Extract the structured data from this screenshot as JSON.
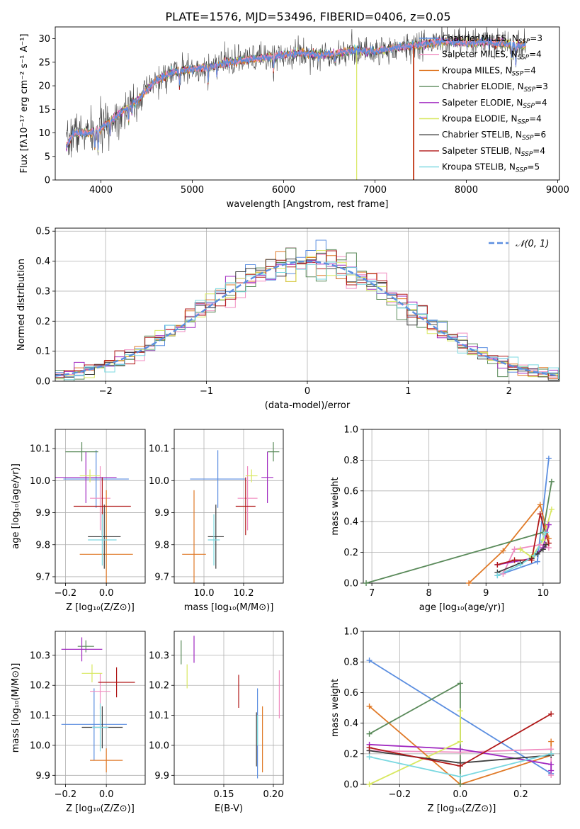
{
  "figure_title": "PLATE=1576, MJD=53496, FIBERID=0406, z=0.05",
  "colors": {
    "chabrier_miles": "#5b8ee0",
    "salpeter_miles": "#f08cc0",
    "kroupa_miles": "#e07a28",
    "chabrier_elodie": "#5a8a5a",
    "salpeter_elodie": "#a028c0",
    "kroupa_elodie": "#d8e860",
    "chabrier_stelib": "#404040",
    "salpeter_stelib": "#b01818",
    "kroupa_stelib": "#7ad8e0",
    "gauss": "#5b8ee0"
  },
  "legend_spectrum": [
    {
      "pre": "Chabrier MILES, N",
      "sub": "SSP",
      "post": "=3",
      "color": "#5b8ee0"
    },
    {
      "pre": "Salpeter MILES, N",
      "sub": "SSP",
      "post": "=4",
      "color": "#f08cc0"
    },
    {
      "pre": "Kroupa MILES, N",
      "sub": "SSP",
      "post": "=4",
      "color": "#e07a28"
    },
    {
      "pre": "Chabrier ELODIE, N",
      "sub": "SSP",
      "post": "=3",
      "color": "#5a8a5a"
    },
    {
      "pre": "Salpeter ELODIE, N",
      "sub": "SSP",
      "post": "=4",
      "color": "#a028c0"
    },
    {
      "pre": "Kroupa ELODIE, N",
      "sub": "SSP",
      "post": "=4",
      "color": "#d8e860"
    },
    {
      "pre": "Chabrier STELIB, N",
      "sub": "SSP",
      "post": "=6",
      "color": "#404040"
    },
    {
      "pre": "Salpeter STELIB, N",
      "sub": "SSP",
      "post": "=4",
      "color": "#b01818"
    },
    {
      "pre": "Kroupa STELIB, N",
      "sub": "SSP",
      "post": "=5",
      "color": "#7ad8e0"
    }
  ],
  "legend_gauss": "𝒩(0, 1)",
  "chart_data": [
    {
      "id": "spectrum",
      "type": "line",
      "xlabel": "wavelength [Angstrom, rest frame]",
      "ylabel": "Flux [fλ10⁻¹⁷ erg cm⁻² s⁻¹ A⁻¹]",
      "xlim": [
        3500,
        9020
      ],
      "ylim": [
        0,
        32.5
      ],
      "xticks": [
        4000,
        5000,
        6000,
        7000,
        8000,
        9000
      ],
      "yticks": [
        0,
        5,
        10,
        15,
        20,
        25,
        30
      ],
      "continuum": [
        [
          3620,
          7
        ],
        [
          3700,
          10
        ],
        [
          3900,
          10
        ],
        [
          4000,
          11
        ],
        [
          4200,
          14
        ],
        [
          4400,
          17
        ],
        [
          4600,
          21
        ],
        [
          4800,
          23
        ],
        [
          5000,
          23.5
        ],
        [
          5200,
          24
        ],
        [
          5400,
          25
        ],
        [
          5600,
          25.5
        ],
        [
          5800,
          26
        ],
        [
          6000,
          26.5
        ],
        [
          6200,
          27
        ],
        [
          6400,
          26.5
        ],
        [
          6600,
          27
        ],
        [
          6800,
          27.5
        ],
        [
          7000,
          27.2
        ],
        [
          7200,
          28
        ],
        [
          7400,
          28.5
        ],
        [
          7600,
          29
        ],
        [
          7800,
          29.5
        ],
        [
          8000,
          29
        ],
        [
          8200,
          29.3
        ],
        [
          8400,
          29
        ],
        [
          8600,
          28.5
        ]
      ],
      "absorptions": [
        [
          3934,
          4
        ],
        [
          3969,
          4
        ],
        [
          4102,
          3
        ],
        [
          4304,
          3
        ],
        [
          4340,
          2
        ],
        [
          4861,
          3
        ],
        [
          5175,
          3.5
        ],
        [
          5270,
          2
        ],
        [
          5890,
          3
        ],
        [
          6563,
          2
        ],
        [
          8498,
          3
        ],
        [
          8542,
          4
        ],
        [
          8662,
          4
        ]
      ],
      "model_drops": [
        {
          "x": 6800,
          "color": "#d8e860"
        },
        {
          "x": 7420,
          "color": "#e07a28"
        },
        {
          "x": 7425,
          "color": "#b01818"
        }
      ]
    },
    {
      "id": "residuals",
      "type": "histogram",
      "xlabel": "(data-model)/error",
      "ylabel": "Normed distribution",
      "xlim": [
        -2.5,
        2.5
      ],
      "ylim": [
        0,
        0.51
      ],
      "xticks": [
        -2,
        -1,
        0,
        1,
        2
      ],
      "yticks": [
        0.0,
        0.1,
        0.2,
        0.3,
        0.4,
        0.5
      ],
      "bin_width": 0.1,
      "gaussian": {
        "mean": 0,
        "sigma": 1
      }
    },
    {
      "id": "age_vs_Z",
      "type": "errorbar",
      "xlabel": "Z [log₁₀(Z/Z⊙)]",
      "ylabel": "age  [log₁₀(age/yr)]",
      "xlim": [
        -0.25,
        0.19
      ],
      "ylim": [
        9.68,
        10.16
      ],
      "xticks": [
        -0.2,
        0.0
      ],
      "yticks": [
        9.7,
        9.8,
        9.9,
        10.0,
        10.1
      ],
      "points": [
        {
          "model": "chabrier_miles",
          "x": -0.05,
          "xerr": 0.16,
          "y": 10.005,
          "yerr": 0.09
        },
        {
          "model": "salpeter_miles",
          "x": -0.03,
          "xerr": 0.05,
          "y": 9.945,
          "yerr": 0.1
        },
        {
          "model": "kroupa_miles",
          "x": 0.0,
          "xerr": 0.13,
          "y": 9.77,
          "yerr": 0.2
        },
        {
          "model": "chabrier_elodie",
          "x": -0.12,
          "xerr": 0.08,
          "y": 10.09,
          "yerr": 0.03
        },
        {
          "model": "salpeter_elodie",
          "x": -0.1,
          "xerr": 0.15,
          "y": 10.01,
          "yerr": 0.08
        },
        {
          "model": "kroupa_elodie",
          "x": -0.08,
          "xerr": 0.05,
          "y": 10.015,
          "yerr": 0.02
        },
        {
          "model": "chabrier_stelib",
          "x": -0.01,
          "xerr": 0.08,
          "y": 9.825,
          "yerr": 0.1
        },
        {
          "model": "salpeter_stelib",
          "x": -0.02,
          "xerr": 0.14,
          "y": 9.92,
          "yerr": 0.09
        },
        {
          "model": "kroupa_stelib",
          "x": -0.02,
          "xerr": 0.07,
          "y": 9.815,
          "yerr": 0.08
        }
      ]
    },
    {
      "id": "age_vs_mass",
      "type": "errorbar",
      "xlabel": "mass [log₁₀(M/M⊙)]",
      "ylabel": "",
      "xlim": [
        9.85,
        10.4
      ],
      "ylim": [
        9.68,
        10.16
      ],
      "xticks": [
        10.0,
        10.2
      ],
      "yticks": [
        9.7,
        9.8,
        9.9,
        10.0,
        10.1
      ],
      "points": [
        {
          "model": "chabrier_miles",
          "x": 10.07,
          "xerr": 0.14,
          "y": 10.005,
          "yerr": 0.09
        },
        {
          "model": "salpeter_miles",
          "x": 10.22,
          "xerr": 0.05,
          "y": 9.945,
          "yerr": 0.1
        },
        {
          "model": "kroupa_miles",
          "x": 9.95,
          "xerr": 0.06,
          "y": 9.77,
          "yerr": 0.2
        },
        {
          "model": "chabrier_elodie",
          "x": 10.35,
          "xerr": 0.03,
          "y": 10.09,
          "yerr": 0.03
        },
        {
          "model": "salpeter_elodie",
          "x": 10.32,
          "xerr": 0.03,
          "y": 10.01,
          "yerr": 0.08
        },
        {
          "model": "kroupa_elodie",
          "x": 10.24,
          "xerr": 0.03,
          "y": 10.015,
          "yerr": 0.02
        },
        {
          "model": "chabrier_stelib",
          "x": 10.06,
          "xerr": 0.04,
          "y": 9.825,
          "yerr": 0.1
        },
        {
          "model": "salpeter_stelib",
          "x": 10.21,
          "xerr": 0.05,
          "y": 9.92,
          "yerr": 0.09
        },
        {
          "model": "kroupa_stelib",
          "x": 10.05,
          "xerr": 0.03,
          "y": 9.815,
          "yerr": 0.08
        }
      ]
    },
    {
      "id": "weight_vs_age",
      "type": "line",
      "xlabel": "age  [log₁₀(age/yr)]",
      "ylabel": "mass weight",
      "xlim": [
        6.85,
        10.3
      ],
      "ylim": [
        0,
        1.0
      ],
      "xticks": [
        7,
        8,
        9,
        10
      ],
      "yticks": [
        0.0,
        0.2,
        0.4,
        0.6,
        0.8,
        1.0
      ],
      "series": [
        {
          "model": "chabrier_miles",
          "x": [
            9.2,
            9.9,
            10.1
          ],
          "y": [
            0.05,
            0.14,
            0.81
          ]
        },
        {
          "model": "salpeter_miles",
          "x": [
            9.3,
            9.5,
            9.95,
            10.1
          ],
          "y": [
            0.06,
            0.22,
            0.25,
            0.23
          ]
        },
        {
          "model": "kroupa_miles",
          "x": [
            8.7,
            9.3,
            9.95,
            10.1
          ],
          "y": [
            0.0,
            0.21,
            0.51,
            0.29
          ]
        },
        {
          "model": "chabrier_elodie",
          "x": [
            6.9,
            10.0,
            10.15
          ],
          "y": [
            0.0,
            0.33,
            0.66
          ]
        },
        {
          "model": "salpeter_elodie",
          "x": [
            9.2,
            9.8,
            10.0,
            10.1
          ],
          "y": [
            0.12,
            0.16,
            0.23,
            0.38
          ]
        },
        {
          "model": "kroupa_elodie",
          "x": [
            9.6,
            9.8,
            10.0,
            10.15
          ],
          "y": [
            0.22,
            0.17,
            0.28,
            0.48
          ]
        },
        {
          "model": "chabrier_stelib",
          "x": [
            9.2,
            9.6,
            9.8,
            9.9,
            10.0,
            10.05
          ],
          "y": [
            0.07,
            0.13,
            0.16,
            0.19,
            0.22,
            0.25
          ]
        },
        {
          "model": "salpeter_stelib",
          "x": [
            9.2,
            9.5,
            9.8,
            9.95,
            10.1
          ],
          "y": [
            0.12,
            0.15,
            0.15,
            0.45,
            0.26
          ]
        },
        {
          "model": "kroupa_stelib",
          "x": [
            9.2,
            9.6,
            9.85,
            10.05
          ],
          "y": [
            0.05,
            0.12,
            0.18,
            0.33
          ]
        }
      ]
    },
    {
      "id": "mass_vs_Z",
      "type": "errorbar",
      "xlabel": "Z [log₁₀(Z/Z⊙)]",
      "ylabel": "mass [log₁₀(M/M⊙)]",
      "xlim": [
        -0.25,
        0.19
      ],
      "ylim": [
        9.87,
        10.38
      ],
      "xticks": [
        -0.2,
        0.0
      ],
      "yticks": [
        9.9,
        10.0,
        10.1,
        10.2,
        10.3
      ],
      "points": [
        {
          "model": "chabrier_miles",
          "x": -0.06,
          "xerr": 0.16,
          "y": 10.07,
          "yerr": 0.12
        },
        {
          "model": "salpeter_miles",
          "x": -0.03,
          "xerr": 0.05,
          "y": 10.18,
          "yerr": 0.06
        },
        {
          "model": "kroupa_miles",
          "x": 0.0,
          "xerr": 0.08,
          "y": 9.95,
          "yerr": 0.04
        },
        {
          "model": "chabrier_elodie",
          "x": -0.1,
          "xerr": 0.04,
          "y": 10.33,
          "yerr": 0.02
        },
        {
          "model": "salpeter_elodie",
          "x": -0.12,
          "xerr": 0.1,
          "y": 10.32,
          "yerr": 0.04
        },
        {
          "model": "kroupa_elodie",
          "x": -0.07,
          "xerr": 0.05,
          "y": 10.24,
          "yerr": 0.03
        },
        {
          "model": "chabrier_stelib",
          "x": -0.02,
          "xerr": 0.1,
          "y": 10.06,
          "yerr": 0.07
        },
        {
          "model": "salpeter_stelib",
          "x": 0.05,
          "xerr": 0.09,
          "y": 10.21,
          "yerr": 0.05
        },
        {
          "model": "kroupa_stelib",
          "x": -0.03,
          "xerr": 0.04,
          "y": 10.06,
          "yerr": 0.08
        }
      ]
    },
    {
      "id": "mass_vs_ebv",
      "type": "errorbar",
      "xlabel": "E(B-V)",
      "ylabel": "",
      "xlim": [
        0.1,
        0.21
      ],
      "ylim": [
        9.87,
        10.38
      ],
      "xticks": [
        0.15,
        0.2
      ],
      "yticks": [
        9.9,
        10.0,
        10.1,
        10.2,
        10.3
      ],
      "points": [
        {
          "model": "chabrier_miles",
          "x": 0.184,
          "xerr": 0.0,
          "y": 10.04,
          "yerr": 0.15
        },
        {
          "model": "salpeter_miles",
          "x": 0.206,
          "xerr": 0.0,
          "y": 10.17,
          "yerr": 0.08
        },
        {
          "model": "kroupa_miles",
          "x": 0.189,
          "xerr": 0.0,
          "y": 10.02,
          "yerr": 0.11
        },
        {
          "model": "chabrier_elodie",
          "x": 0.107,
          "xerr": 0.0,
          "y": 10.31,
          "yerr": 0.04
        },
        {
          "model": "salpeter_elodie",
          "x": 0.12,
          "xerr": 0.0,
          "y": 10.32,
          "yerr": 0.045
        },
        {
          "model": "kroupa_elodie",
          "x": 0.113,
          "xerr": 0.0,
          "y": 10.23,
          "yerr": 0.04
        },
        {
          "model": "chabrier_stelib",
          "x": 0.183,
          "xerr": 0.0,
          "y": 10.02,
          "yerr": 0.09
        },
        {
          "model": "salpeter_stelib",
          "x": 0.165,
          "xerr": 0.0,
          "y": 10.18,
          "yerr": 0.055
        },
        {
          "model": "kroupa_stelib",
          "x": 0.184,
          "xerr": 0.0,
          "y": 10.05,
          "yerr": 0.05
        }
      ]
    },
    {
      "id": "weight_vs_Z",
      "type": "line",
      "xlabel": "Z [log₁₀(Z/Z⊙)]",
      "ylabel": "mass weight",
      "xlim": [
        -0.32,
        0.33
      ],
      "ylim": [
        0,
        1.0
      ],
      "xticks": [
        -0.2,
        0.0,
        0.2
      ],
      "yticks": [
        0.0,
        0.2,
        0.4,
        0.6,
        0.8,
        1.0
      ],
      "series": [
        {
          "model": "chabrier_miles",
          "x": [
            -0.3,
            0.3
          ],
          "y": [
            0.81,
            0.07
          ]
        },
        {
          "model": "salpeter_miles",
          "x": [
            -0.3,
            0.0,
            0.3,
            0.3
          ],
          "y": [
            0.22,
            0.21,
            0.23,
            0.06
          ]
        },
        {
          "model": "kroupa_miles",
          "x": [
            -0.3,
            0.0,
            0.3,
            0.3
          ],
          "y": [
            0.51,
            0.0,
            0.19,
            0.28
          ]
        },
        {
          "model": "chabrier_elodie",
          "x": [
            -0.3,
            0.0,
            0.0
          ],
          "y": [
            0.33,
            0.66,
            0.0
          ]
        },
        {
          "model": "salpeter_elodie",
          "x": [
            -0.3,
            0.0,
            0.3,
            0.3
          ],
          "y": [
            0.26,
            0.23,
            0.13,
            0.09
          ]
        },
        {
          "model": "kroupa_elodie",
          "x": [
            -0.3,
            0.0,
            0.0
          ],
          "y": [
            0.0,
            0.28,
            0.48
          ]
        },
        {
          "model": "chabrier_stelib",
          "x": [
            -0.3,
            0.0,
            0.3
          ],
          "y": [
            0.22,
            0.14,
            0.19
          ]
        },
        {
          "model": "salpeter_stelib",
          "x": [
            -0.3,
            0.0,
            0.3
          ],
          "y": [
            0.24,
            0.12,
            0.46
          ]
        },
        {
          "model": "kroupa_stelib",
          "x": [
            -0.3,
            0.0,
            0.3
          ],
          "y": [
            0.18,
            0.05,
            0.2
          ]
        }
      ]
    }
  ]
}
